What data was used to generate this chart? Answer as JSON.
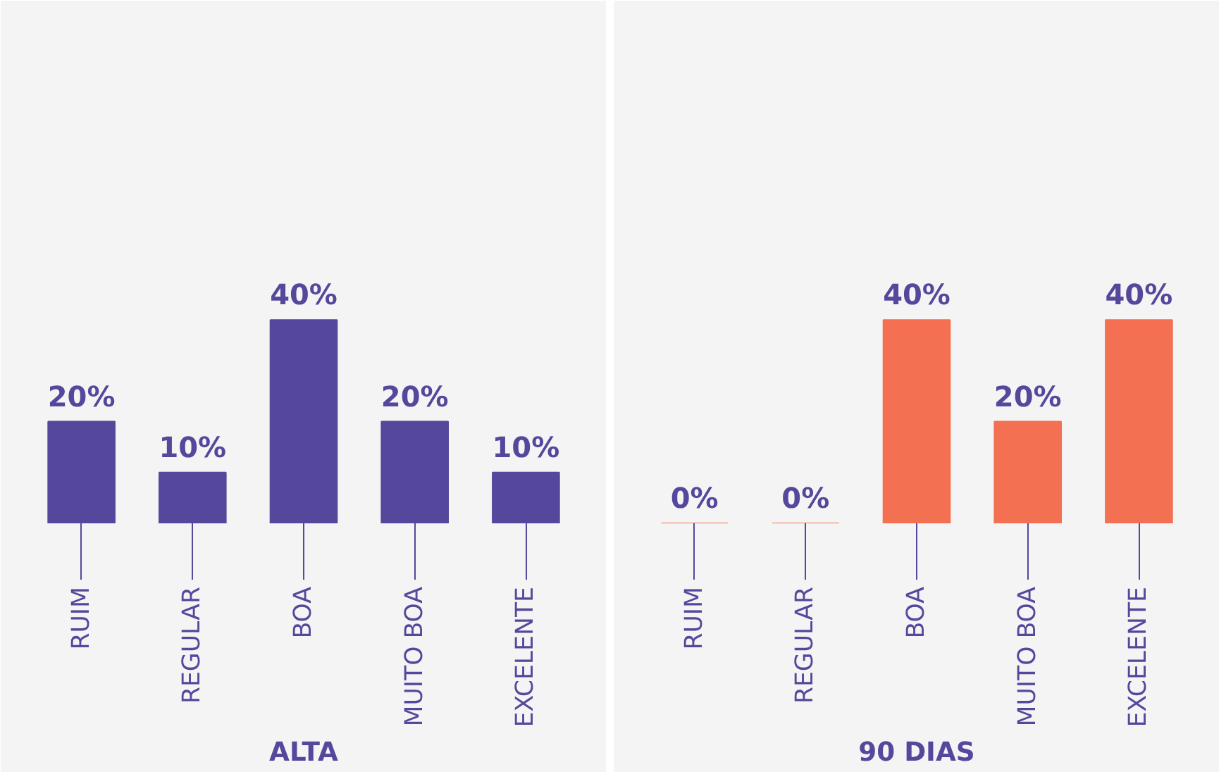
{
  "chart_data": [
    {
      "type": "bar",
      "xlabel": "ALTA",
      "categories": [
        "RUIM",
        "REGULAR",
        "BOA",
        "MUITO BOA",
        "EXCELENTE"
      ],
      "values": [
        20,
        10,
        40,
        20,
        10
      ],
      "value_labels": [
        "20%",
        "10%",
        "40%",
        "20%",
        "10%"
      ],
      "color": "#55489c",
      "ylim": [
        0,
        100
      ],
      "tick_labels": "x",
      "grid": false
    },
    {
      "type": "bar",
      "xlabel": "90 DIAS",
      "categories": [
        "RUIM",
        "REGULAR",
        "BOA",
        "MUITO BOA",
        "EXCELENTE"
      ],
      "values": [
        0,
        0,
        40,
        20,
        40
      ],
      "value_labels": [
        "0%",
        "0%",
        "40%",
        "20%",
        "40%"
      ],
      "color": "#f47052",
      "ylim": [
        0,
        100
      ],
      "tick_labels": "x",
      "grid": false
    }
  ]
}
